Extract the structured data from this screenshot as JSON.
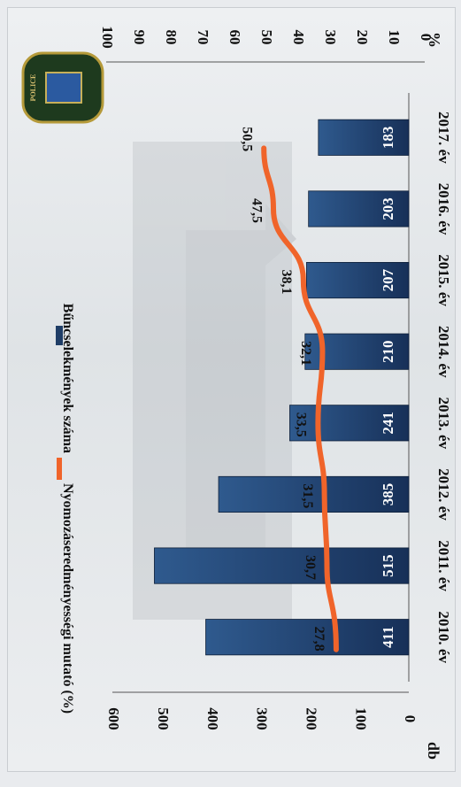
{
  "chart_data": {
    "type": "bar+line",
    "categories": [
      "2010. év",
      "2011. év",
      "2012. év",
      "2013. év",
      "2014. év",
      "2015. év",
      "2016. év",
      "2017. év"
    ],
    "series": [
      {
        "name": "Bűncselekmények száma",
        "type": "bar",
        "axis": "left",
        "values": [
          411,
          515,
          385,
          241,
          210,
          207,
          203,
          183
        ],
        "color": "#1f3d66"
      },
      {
        "name": "Nyomozáseredményességi mutató (%)",
        "type": "line",
        "axis": "right",
        "values": [
          27.8,
          30.7,
          31.5,
          33.5,
          32.1,
          38.1,
          47.5,
          50.5
        ],
        "color": "#f0642a"
      }
    ],
    "bar_labels": [
      "411",
      "515",
      "385",
      "241",
      "210",
      "207",
      "203",
      "183"
    ],
    "line_labels": [
      "27,8",
      "30,7",
      "31,5",
      "33,5",
      "32,1",
      "38,1",
      "47,5",
      "50,5"
    ],
    "left_axis": {
      "unit": "db",
      "ticks": [
        0,
        100,
        200,
        300,
        400,
        500,
        600
      ],
      "range": [
        0,
        600
      ]
    },
    "right_axis": {
      "unit": "%",
      "ticks": [
        0,
        10,
        20,
        30,
        40,
        50,
        60,
        70,
        80,
        90,
        100
      ],
      "range": [
        0,
        100
      ]
    },
    "orientation": "rotated-90-clockwise",
    "legend_position": "top"
  },
  "badge": {
    "text": "POLICE"
  }
}
